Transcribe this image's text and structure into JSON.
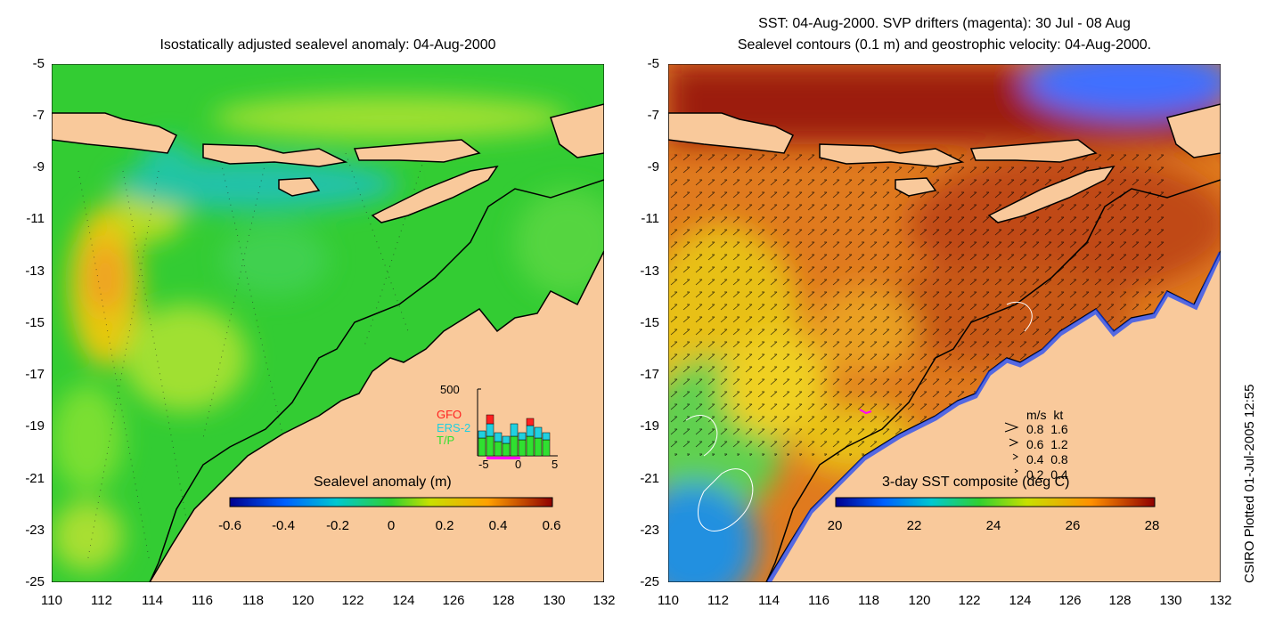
{
  "left_panel": {
    "title": "Isostatically adjusted sealevel anomaly: 04-Aug-2000",
    "colorbar_label": "Sealevel anomaly (m)",
    "colorbar_ticks": [
      "-0.6",
      "-0.4",
      "-0.2",
      "0",
      "0.2",
      "0.4",
      "0.6"
    ],
    "inset": {
      "ymax_label": "500",
      "legend": [
        {
          "name": "GFO",
          "color": "#ff2020"
        },
        {
          "name": "ERS-2",
          "color": "#20d0e0"
        },
        {
          "name": "T/P",
          "color": "#30e030"
        }
      ],
      "x_ticks": [
        "-5",
        "0",
        "5"
      ]
    }
  },
  "right_panel": {
    "title_line1": "SST: 04-Aug-2000. SVP drifters (magenta): 30 Jul - 08 Aug",
    "title_line2": "Sealevel contours (0.1 m) and geostrophic velocity: 04-Aug-2000.",
    "colorbar_label": "3-day SST composite (deg C)",
    "colorbar_ticks": [
      "20",
      "22",
      "24",
      "26",
      "28"
    ],
    "velocity_legend": {
      "header": "m/s  kt",
      "rows": [
        "0.8  1.6",
        "0.6  1.2",
        "0.4  0.8",
        "0.2  0.4"
      ]
    }
  },
  "y_ticks": [
    "-5",
    "-7",
    "-9",
    "-11",
    "-13",
    "-15",
    "-17",
    "-19",
    "-21",
    "-23",
    "-25"
  ],
  "x_ticks": [
    "110",
    "112",
    "114",
    "116",
    "118",
    "120",
    "122",
    "124",
    "126",
    "128",
    "130",
    "132"
  ],
  "side_label": "CSIRO Plotted 01-Jul-2005 12:55",
  "colors": {
    "land": "#f9c99b",
    "ocean_left": "#33cc33",
    "ocean_right": "#e07a1e"
  }
}
